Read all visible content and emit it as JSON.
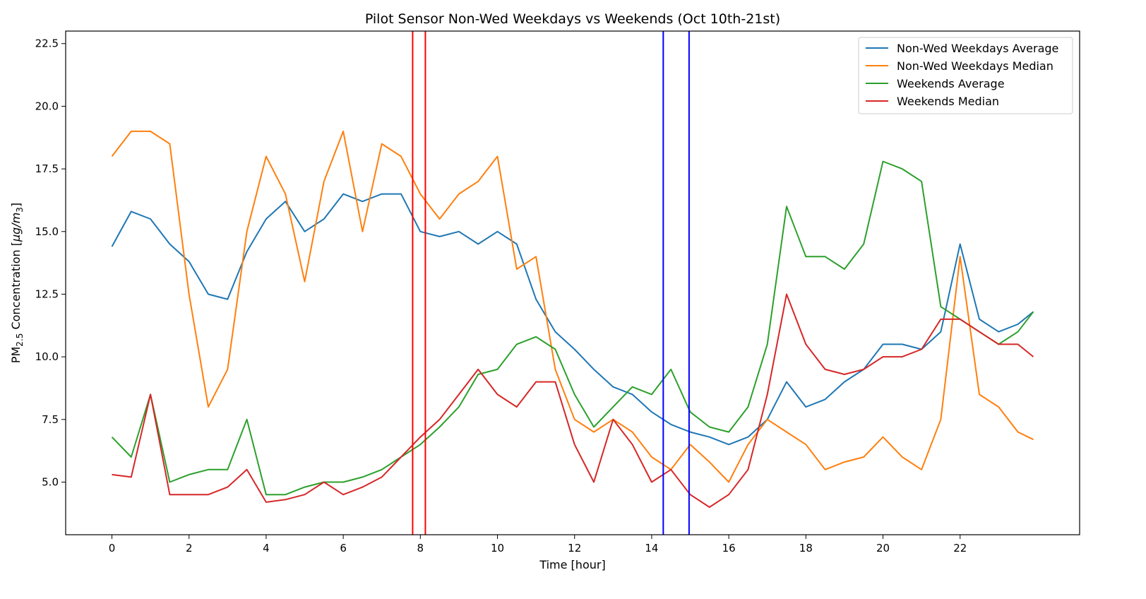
{
  "chart_data": {
    "type": "line",
    "title": "Pilot Sensor Non-Wed Weekdays vs Weekends (Oct 10th-21st)",
    "xlabel": "Time [hour]",
    "ylabel_main": "PM",
    "ylabel_sub": "2.5",
    "ylabel_mid": " Concentration [",
    "ylabel_mu": "μ",
    "ylabel_g": "g/m",
    "ylabel_unit_sub": "3",
    "ylabel_end": "]",
    "xlim": [
      -1.2,
      25.1
    ],
    "ylim": [
      2.9,
      23.0
    ],
    "xticks": [
      0,
      2,
      4,
      6,
      8,
      10,
      12,
      14,
      16,
      18,
      20,
      22
    ],
    "xtick_labels": [
      "0",
      "2",
      "4",
      "6",
      "8",
      "10",
      "12",
      "14",
      "16",
      "18",
      "20",
      "22"
    ],
    "yticks": [
      5.0,
      7.5,
      10.0,
      12.5,
      15.0,
      17.5,
      20.0,
      22.5
    ],
    "ytick_labels": [
      "5.0",
      "7.5",
      "10.0",
      "12.5",
      "15.0",
      "17.5",
      "20.0",
      "22.5"
    ],
    "grid": false,
    "legend_position": "top-right",
    "vertical_lines": [
      {
        "x": 7.8,
        "color": "#ff0000"
      },
      {
        "x": 8.13,
        "color": "#ff0000"
      },
      {
        "x": 14.3,
        "color": "#0000ff"
      },
      {
        "x": 14.97,
        "color": "#0000ff"
      }
    ],
    "series": [
      {
        "name": "Non-Wed Weekdays Average",
        "color": "#1f77b4",
        "x": [
          0,
          0.5,
          1,
          1.5,
          2,
          2.5,
          3,
          3.5,
          4,
          4.5,
          5,
          5.5,
          6,
          6.5,
          7,
          7.5,
          8,
          8.5,
          9,
          9.5,
          10,
          10.5,
          11,
          11.5,
          12,
          12.5,
          13,
          13.5,
          14,
          14.5,
          15,
          15.5,
          16,
          16.5,
          17,
          17.5,
          18,
          18.5,
          19,
          19.5,
          20,
          20.5,
          21,
          21.5,
          22,
          22.5,
          23,
          23.5,
          23.9
        ],
        "y": [
          14.4,
          15.8,
          15.5,
          14.5,
          13.8,
          12.5,
          12.3,
          14.2,
          15.5,
          16.2,
          15.0,
          15.5,
          16.5,
          16.2,
          16.5,
          16.5,
          15.0,
          14.8,
          15.0,
          14.5,
          15.0,
          14.5,
          12.3,
          11.0,
          10.3,
          9.5,
          8.8,
          8.5,
          7.8,
          7.3,
          7.0,
          6.8,
          6.5,
          6.8,
          7.5,
          9.0,
          8.0,
          8.3,
          9.0,
          9.5,
          10.5,
          10.5,
          10.3,
          11.0,
          14.5,
          11.5,
          11.0,
          11.3,
          11.8
        ]
      },
      {
        "name": "Non-Wed Weekdays Median",
        "color": "#ff7f0e",
        "x": [
          0,
          0.5,
          1,
          1.5,
          2,
          2.5,
          3,
          3.5,
          4,
          4.5,
          5,
          5.5,
          6,
          6.5,
          7,
          7.5,
          8,
          8.5,
          9,
          9.5,
          10,
          10.5,
          11,
          11.5,
          12,
          12.5,
          13,
          13.5,
          14,
          14.5,
          15,
          15.5,
          16,
          16.5,
          17,
          17.5,
          18,
          18.5,
          19,
          19.5,
          20,
          20.5,
          21,
          21.5,
          22,
          22.5,
          23,
          23.5,
          23.9
        ],
        "y": [
          18.0,
          19.0,
          19.0,
          18.5,
          12.5,
          8.0,
          9.5,
          15.0,
          18.0,
          16.5,
          13.0,
          17.0,
          19.0,
          15.0,
          18.5,
          18.0,
          16.5,
          15.5,
          16.5,
          17.0,
          18.0,
          13.5,
          14.0,
          9.5,
          7.5,
          7.0,
          7.5,
          7.0,
          6.0,
          5.5,
          6.5,
          5.8,
          5.0,
          6.5,
          7.5,
          7.0,
          6.5,
          5.5,
          5.8,
          6.0,
          6.8,
          6.0,
          5.5,
          7.5,
          14.0,
          8.5,
          8.0,
          7.0,
          6.7
        ]
      },
      {
        "name": "Weekends Average",
        "color": "#2ca02c",
        "x": [
          0,
          0.5,
          1,
          1.5,
          2,
          2.5,
          3,
          3.5,
          4,
          4.5,
          5,
          5.5,
          6,
          6.5,
          7,
          7.5,
          8,
          8.5,
          9,
          9.5,
          10,
          10.5,
          11,
          11.5,
          12,
          12.5,
          13,
          13.5,
          14,
          14.5,
          15,
          15.5,
          16,
          16.5,
          17,
          17.5,
          18,
          18.5,
          19,
          19.5,
          20,
          20.5,
          21,
          21.5,
          22,
          22.5,
          23,
          23.5,
          23.9
        ],
        "y": [
          6.8,
          6.0,
          8.5,
          5.0,
          5.3,
          5.5,
          5.5,
          7.5,
          4.5,
          4.5,
          4.8,
          5.0,
          5.0,
          5.2,
          5.5,
          6.0,
          6.5,
          7.2,
          8.0,
          9.3,
          9.5,
          10.5,
          10.8,
          10.3,
          8.5,
          7.2,
          8.0,
          8.8,
          8.5,
          9.5,
          7.8,
          7.2,
          7.0,
          8.0,
          10.5,
          16.0,
          14.0,
          14.0,
          13.5,
          14.5,
          17.8,
          17.5,
          17.0,
          12.0,
          11.5,
          11.0,
          10.5,
          11.0,
          11.8
        ]
      },
      {
        "name": "Weekends Median",
        "color": "#d62728",
        "x": [
          0,
          0.5,
          1,
          1.5,
          2,
          2.5,
          3,
          3.5,
          4,
          4.5,
          5,
          5.5,
          6,
          6.5,
          7,
          7.5,
          8,
          8.5,
          9,
          9.5,
          10,
          10.5,
          11,
          11.5,
          12,
          12.5,
          13,
          13.5,
          14,
          14.5,
          15,
          15.5,
          16,
          16.5,
          17,
          17.5,
          18,
          18.5,
          19,
          19.5,
          20,
          20.5,
          21,
          21.5,
          22,
          22.5,
          23,
          23.5,
          23.9
        ],
        "y": [
          5.3,
          5.2,
          8.5,
          4.5,
          4.5,
          4.5,
          4.8,
          5.5,
          4.2,
          4.3,
          4.5,
          5.0,
          4.5,
          4.8,
          5.2,
          6.0,
          6.8,
          7.5,
          8.5,
          9.5,
          8.5,
          8.0,
          9.0,
          9.0,
          6.5,
          5.0,
          7.5,
          6.5,
          5.0,
          5.5,
          4.5,
          4.0,
          4.5,
          5.5,
          8.5,
          12.5,
          10.5,
          9.5,
          9.3,
          9.5,
          10.0,
          10.0,
          10.3,
          11.5,
          11.5,
          11.0,
          10.5,
          10.5,
          10.0
        ]
      }
    ]
  }
}
